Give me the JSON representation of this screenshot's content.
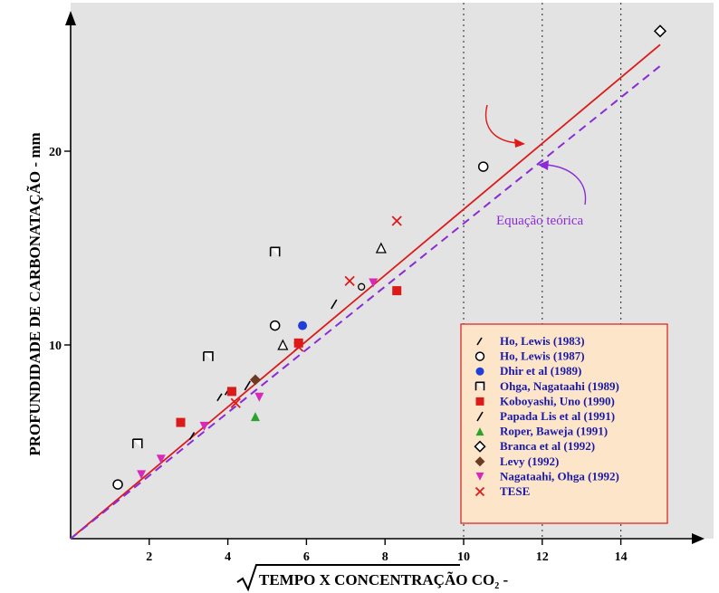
{
  "chart_data": {
    "type": "scatter",
    "xlabel": "TEMPO X CONCENTRAÇÃO CO",
    "xlabel_sub": "2",
    "xlabel_suffix": " -",
    "ylabel": "PROFUNDIDADE DE CARBONATAÇÃO - mm",
    "xlim": [
      0,
      15.5
    ],
    "ylim": [
      0,
      26.5
    ],
    "x_ticks": [
      2,
      4,
      6,
      8,
      10,
      12,
      14
    ],
    "y_ticks": [
      10,
      20
    ],
    "vertical_dotted_lines": [
      10,
      12,
      14
    ],
    "grid": false,
    "legend_position": "bottom-right",
    "colors": {
      "plot_background": "#e3e3e3",
      "fit_line": "#dd1a1a",
      "theory_line": "#8a2bd6",
      "legend_background": "#fce5c8",
      "legend_border": "#dd1a1a",
      "legend_text": "#1a1aa8"
    },
    "lines": [
      {
        "name": "fit",
        "style": "solid",
        "color": "#dd1a1a",
        "x": [
          0,
          15
        ],
        "y": [
          0,
          25.5
        ]
      },
      {
        "name": "Equação teórica",
        "style": "dashed",
        "color": "#8a2bd6",
        "x": [
          0,
          15
        ],
        "y": [
          0,
          24.4
        ]
      }
    ],
    "annotations": [
      {
        "text": "Equação teórica",
        "x": 11.5,
        "y": 16.2
      }
    ],
    "series": [
      {
        "name": "Ho,   Lewis (1983)",
        "marker": "tick",
        "color": "#000000",
        "points": [
          [
            3.1,
            5.3
          ],
          [
            3.8,
            7.3
          ],
          [
            4.0,
            7.6
          ]
        ]
      },
      {
        "name": "Ho,   Lewis (1987)",
        "marker": "circle-open",
        "color": "#000000",
        "points": [
          [
            1.2,
            2.8
          ],
          [
            5.2,
            11.0
          ],
          [
            10.5,
            19.2
          ]
        ]
      },
      {
        "name": "Dhir et al  (1989)",
        "marker": "circle-filled",
        "color": "#1f3fd6",
        "points": [
          [
            5.9,
            11.0
          ]
        ]
      },
      {
        "name": "Ohga, Nagataahi  (1989)",
        "marker": "square-open",
        "color": "#000000",
        "points": [
          [
            1.7,
            4.9
          ],
          [
            3.5,
            9.4
          ],
          [
            5.2,
            14.8
          ]
        ]
      },
      {
        "name": "Koboyashi, Uno   (1990)",
        "marker": "square-filled",
        "color": "#dd1a1a",
        "points": [
          [
            2.8,
            6.0
          ],
          [
            4.1,
            7.6
          ],
          [
            5.8,
            10.1
          ],
          [
            8.3,
            12.8
          ]
        ]
      },
      {
        "name": "Papada Lis et al  (1991)",
        "marker": "slash",
        "color": "#000000",
        "points": [
          [
            4.5,
            7.9
          ],
          [
            6.7,
            12.1
          ]
        ]
      },
      {
        "name": "Roper, Baweja  (1991)",
        "marker": "triangle",
        "color": "#2aa52a",
        "points": [
          [
            4.7,
            6.3
          ]
        ]
      },
      {
        "name": "Branca et al  (1992)",
        "marker": "diamond-open",
        "color": "#000000",
        "points": [
          [
            15.0,
            26.2
          ]
        ]
      },
      {
        "name": "Levy   (1992)",
        "marker": "diamond-filled",
        "color": "#6b3b22",
        "points": [
          [
            4.7,
            8.2
          ]
        ]
      },
      {
        "name": "Nagataahi, Ohga  (1992)",
        "marker": "triangle-down",
        "color": "#d62ab8",
        "points": [
          [
            1.8,
            3.3
          ],
          [
            2.3,
            4.1
          ],
          [
            3.4,
            5.8
          ],
          [
            4.8,
            7.3
          ],
          [
            7.7,
            13.2
          ]
        ]
      },
      {
        "name": "TESE",
        "marker": "x",
        "color": "#dd1a1a",
        "points": [
          [
            4.2,
            7.0
          ],
          [
            5.8,
            9.9
          ],
          [
            7.1,
            13.3
          ],
          [
            8.3,
            16.4
          ]
        ]
      },
      {
        "name": "",
        "marker": "triangle-open",
        "color": "#000000",
        "legend": false,
        "points": [
          [
            5.4,
            10.0
          ],
          [
            7.9,
            15.0
          ]
        ]
      },
      {
        "name": "",
        "marker": "ring-small",
        "color": "#000000",
        "legend": false,
        "points": [
          [
            7.4,
            13.0
          ]
        ]
      }
    ]
  }
}
